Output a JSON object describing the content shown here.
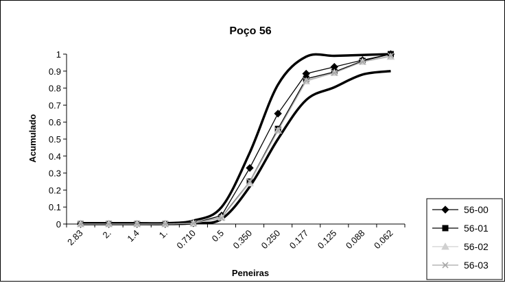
{
  "chart_data": {
    "type": "line",
    "title": "Poço 56",
    "xlabel": "Peneiras",
    "ylabel": "Acumulado",
    "categories": [
      "2.83",
      "2.",
      "1.4",
      "1.",
      "0.710",
      "0.5",
      "0.350",
      "0.250",
      "0.177",
      "0.125",
      "0.088",
      "0.062"
    ],
    "ylim": [
      0,
      1
    ],
    "yticks": [
      "0",
      "0.1",
      "0.2",
      "0.3",
      "0.4",
      "0.5",
      "0.6",
      "0.7",
      "0.8",
      "0.9",
      "1"
    ],
    "grid": false,
    "legend_position": "right",
    "series": [
      {
        "name": "56-00",
        "marker": "diamond",
        "color": "#000000",
        "values": [
          0,
          0,
          0,
          0,
          0.005,
          0.05,
          0.33,
          0.65,
          0.885,
          0.925,
          0.965,
          1.0
        ]
      },
      {
        "name": "56-01",
        "marker": "square",
        "color": "#000000",
        "values": [
          0,
          0,
          0,
          0,
          0.005,
          0.04,
          0.25,
          0.56,
          0.855,
          0.895,
          0.96,
          1.0
        ]
      },
      {
        "name": "56-02",
        "marker": "triangle",
        "color": "#d0d0d0",
        "values": [
          0,
          0,
          0,
          0,
          0.005,
          0.04,
          0.24,
          0.55,
          0.84,
          0.89,
          0.955,
          0.985
        ]
      },
      {
        "name": "56-03",
        "marker": "x",
        "color": "#a8a8a8",
        "values": [
          0,
          0,
          0,
          0,
          0.005,
          0.035,
          0.25,
          0.55,
          0.845,
          0.89,
          0.955,
          0.99
        ]
      }
    ],
    "envelope_curves": [
      {
        "color": "#000000",
        "values": [
          0.005,
          0.005,
          0.005,
          0.005,
          0.02,
          0.1,
          0.42,
          0.82,
          0.985,
          0.99,
          0.995,
          1.0
        ]
      },
      {
        "color": "#000000",
        "values": [
          0,
          0,
          0,
          0,
          0.005,
          0.03,
          0.22,
          0.5,
          0.73,
          0.805,
          0.88,
          0.9
        ]
      }
    ]
  }
}
